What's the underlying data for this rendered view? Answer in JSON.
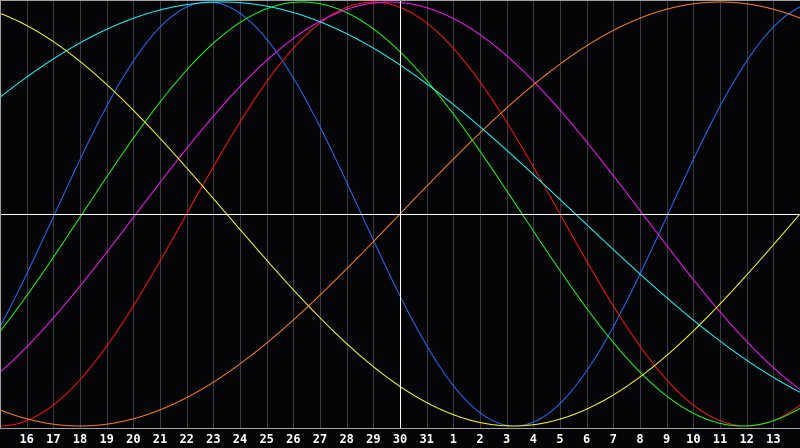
{
  "chart_data": {
    "type": "line",
    "title": "",
    "xlabel": "",
    "ylabel": "",
    "x_tick_labels": [
      "16",
      "17",
      "18",
      "19",
      "20",
      "21",
      "22",
      "23",
      "24",
      "25",
      "26",
      "27",
      "28",
      "29",
      "30",
      "31",
      "1",
      "2",
      "3",
      "4",
      "5",
      "6",
      "7",
      "8",
      "9",
      "10",
      "11",
      "12",
      "13"
    ],
    "highlight_tick": "30",
    "ylim": [
      -1,
      1
    ],
    "x_range_days": 30,
    "grid": true,
    "colors": {
      "background": "#050508",
      "grid": "#3a3a40",
      "axis": "#ffffff",
      "baseline": "#a0a0a0"
    },
    "series": [
      {
        "color": "#1e6cff",
        "period_days": 23,
        "peak_at_day_index": 7.8
      },
      {
        "color": "#ff1010",
        "period_days": 28,
        "peak_at_day_index": 14.0
      },
      {
        "color": "#10ff10",
        "period_days": 33,
        "peak_at_day_index": 11.33
      },
      {
        "color": "#ff10ff",
        "period_days": 38,
        "peak_at_day_index": 14.6
      },
      {
        "color": "#ffff10",
        "period_days": 43,
        "peak_at_day_index": -2.25
      },
      {
        "color": "#ff8010",
        "period_days": 48,
        "peak_at_day_index": 27.0
      },
      {
        "color": "#10ffff",
        "period_days": 53,
        "peak_at_day_index": 8.33
      }
    ]
  }
}
